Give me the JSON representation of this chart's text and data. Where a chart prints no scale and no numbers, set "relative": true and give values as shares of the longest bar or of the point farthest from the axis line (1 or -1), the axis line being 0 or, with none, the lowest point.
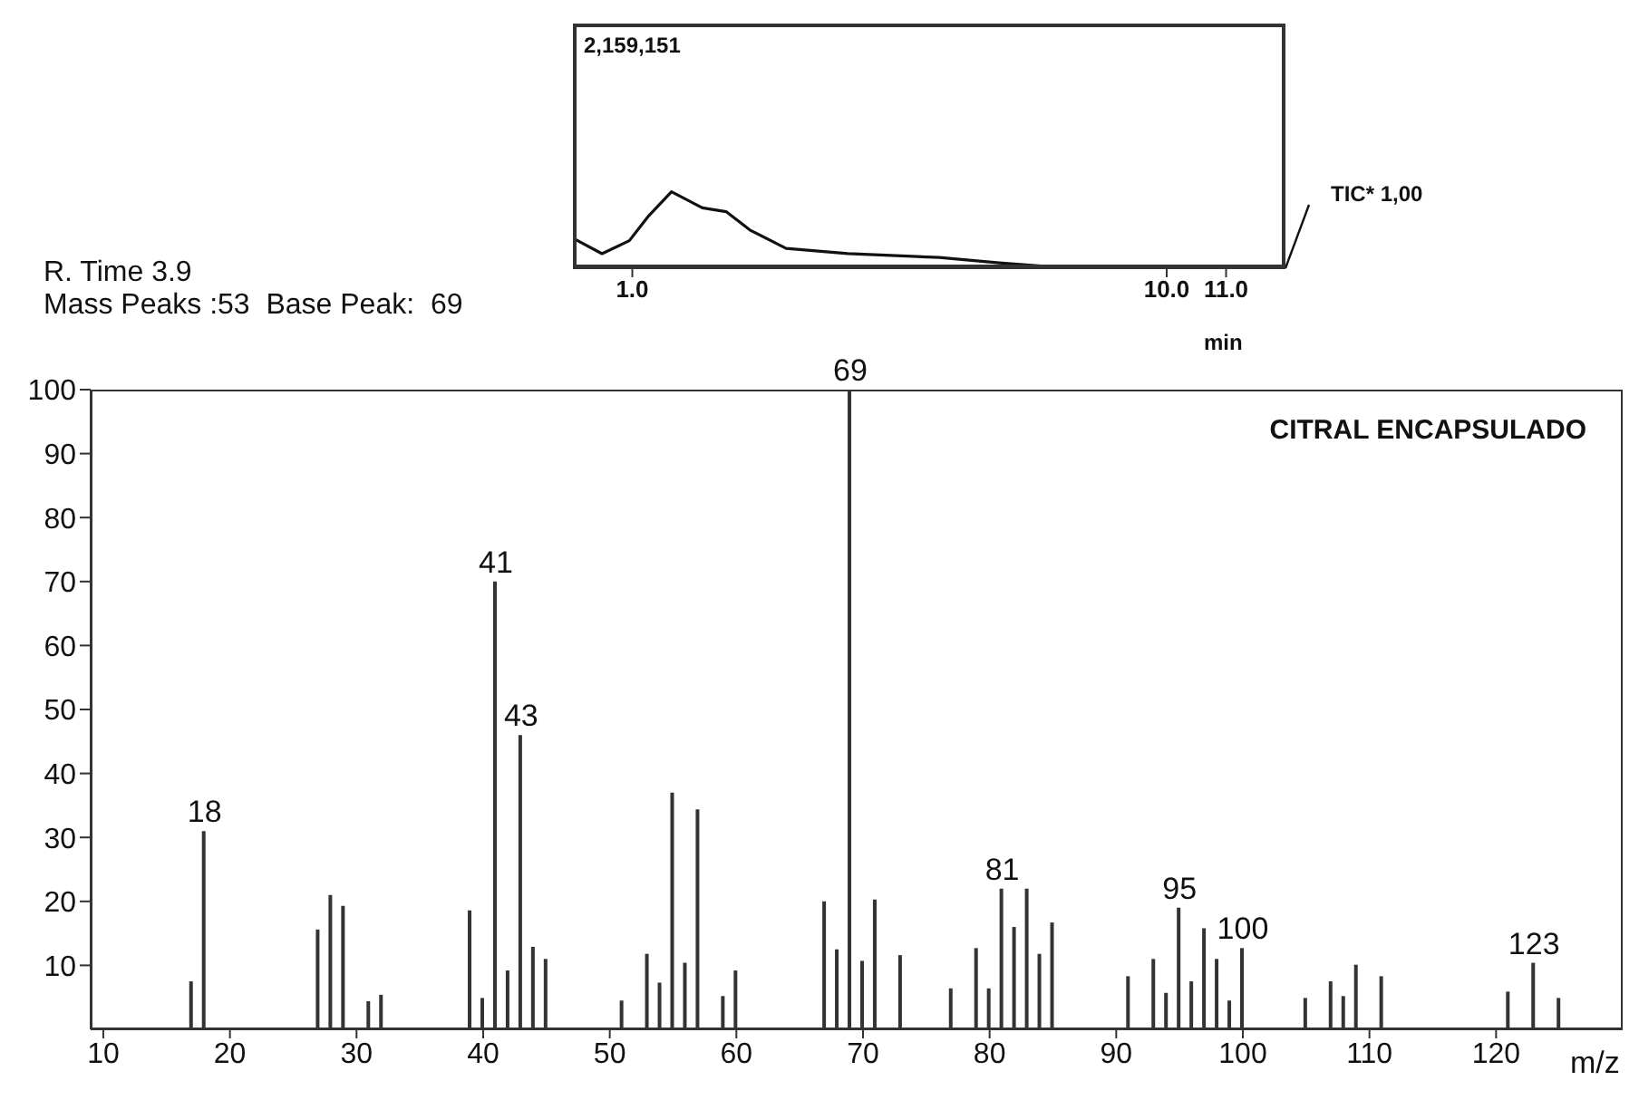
{
  "chart_data": [
    {
      "type": "line",
      "relative": true,
      "xlabel": "min",
      "x": [
        0.03,
        0.49,
        0.95,
        1.26,
        1.66,
        2.18,
        2.58,
        2.98,
        3.59,
        4.63,
        6.17,
        7.18,
        8.19,
        12
      ],
      "values": [
        0.38,
        0.19,
        0.36,
        0.67,
        1.0,
        0.79,
        0.74,
        0.5,
        0.26,
        0.19,
        0.14,
        0.07,
        0.01,
        0
      ],
      "color": "#111111",
      "xlim": [
        0,
        12
      ],
      "xticks": [
        {
          "value": 1,
          "label": "1.0"
        },
        {
          "value": 10,
          "label": "10.0"
        },
        {
          "value": 11,
          "label": "11.0"
        }
      ],
      "annotations": [
        "2,159,151",
        "TIC* 1,00"
      ]
    },
    {
      "type": "bar",
      "title": "CITRAL ENCAPSULADO",
      "xlabel": "m/z",
      "color": "#333333",
      "xlim": [
        9,
        130
      ],
      "xticks": [
        10,
        20,
        30,
        40,
        50,
        60,
        70,
        80,
        90,
        100,
        110,
        120
      ],
      "ylim": [
        0,
        100
      ],
      "yticks": [
        10,
        20,
        30,
        40,
        50,
        60,
        70,
        80,
        90,
        100
      ],
      "x": [
        17,
        18,
        27,
        28,
        29,
        31,
        32,
        39,
        40,
        41,
        42,
        43,
        44,
        45,
        51,
        53,
        54,
        55,
        56,
        57,
        59,
        60,
        67,
        68,
        69,
        70,
        71,
        73,
        77,
        79,
        80,
        81,
        82,
        83,
        84,
        85,
        91,
        93,
        94,
        95,
        96,
        97,
        98,
        99,
        100,
        105,
        107,
        108,
        109,
        111,
        121,
        123,
        125
      ],
      "values": [
        7.5,
        31,
        15.6,
        21,
        19.3,
        4.4,
        5.4,
        18.6,
        4.9,
        70,
        9.2,
        46,
        12.9,
        11,
        4.5,
        11.8,
        7.3,
        37,
        10.4,
        34.4,
        5.2,
        9.2,
        20,
        12.5,
        100,
        10.7,
        20.3,
        11.6,
        6.4,
        12.7,
        6.4,
        22,
        16,
        22,
        11.8,
        16.7,
        8.3,
        11,
        5.7,
        19,
        7.5,
        15.8,
        11,
        4.5,
        12.7,
        4.9,
        7.5,
        5.2,
        10.1,
        8.3,
        5.9,
        10.4,
        4.9
      ],
      "annotations": [
        "R. Time 3.9",
        "Mass Peaks :53  Base Peak:  69",
        {
          "text": "18",
          "x": 18,
          "y": 31
        },
        {
          "text": "41",
          "x": 41,
          "y": 70
        },
        {
          "text": "43",
          "x": 43,
          "y": 46
        },
        {
          "text": "69",
          "x": 69,
          "y": 100
        },
        {
          "text": "81",
          "x": 81,
          "y": 22
        },
        {
          "text": "95",
          "x": 95,
          "y": 19
        },
        {
          "text": "100",
          "x": 100,
          "y": 12.7
        },
        {
          "text": "123",
          "x": 123,
          "y": 10.4
        }
      ]
    }
  ]
}
